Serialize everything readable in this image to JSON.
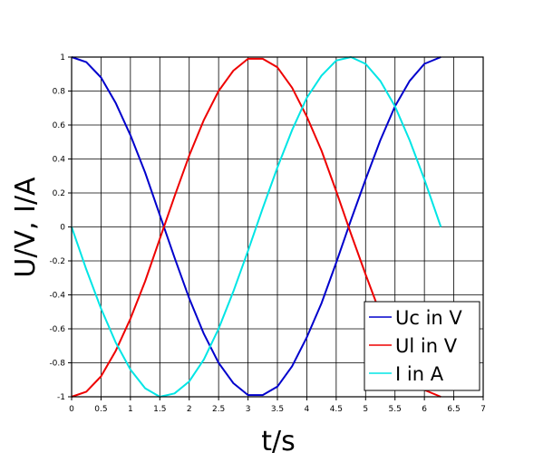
{
  "chart_data": {
    "type": "line",
    "title": "",
    "xlabel": "t/s",
    "ylabel": "U/V, I/A",
    "xlim": [
      0,
      7
    ],
    "ylim": [
      -1,
      1
    ],
    "x_ticks": [
      0,
      0.5,
      1,
      1.5,
      2,
      2.5,
      3,
      3.5,
      4,
      4.5,
      5,
      5.5,
      6,
      6.5,
      7
    ],
    "y_ticks": [
      -1,
      -0.8,
      -0.6,
      -0.4,
      -0.2,
      0,
      0.2,
      0.4,
      0.6,
      0.8,
      1
    ],
    "grid": true,
    "legend_position": "bottom-right",
    "series": [
      {
        "name": "Uc in V",
        "color": "#0000cc",
        "x": [
          0,
          0.25,
          0.5,
          0.75,
          1,
          1.25,
          1.5,
          1.75,
          2,
          2.25,
          2.5,
          2.75,
          3,
          3.25,
          3.5,
          3.75,
          4,
          4.25,
          4.5,
          4.75,
          5,
          5.25,
          5.5,
          5.75,
          6,
          6.28
        ],
        "y": [
          1,
          0.97,
          0.88,
          0.73,
          0.54,
          0.32,
          0.07,
          -0.18,
          -0.42,
          -0.63,
          -0.8,
          -0.92,
          -0.99,
          -0.99,
          -0.94,
          -0.82,
          -0.65,
          -0.45,
          -0.21,
          0.04,
          0.28,
          0.51,
          0.71,
          0.86,
          0.96,
          1
        ]
      },
      {
        "name": "Ul in V",
        "color": "#ee0000",
        "x": [
          0,
          0.25,
          0.5,
          0.75,
          1,
          1.25,
          1.5,
          1.75,
          2,
          2.25,
          2.5,
          2.75,
          3,
          3.25,
          3.5,
          3.75,
          4,
          4.25,
          4.5,
          4.75,
          5,
          5.25,
          5.5,
          5.75,
          6,
          6.28
        ],
        "y": [
          -1,
          -0.97,
          -0.88,
          -0.73,
          -0.54,
          -0.32,
          -0.07,
          0.18,
          0.42,
          0.63,
          0.8,
          0.92,
          0.99,
          0.99,
          0.94,
          0.82,
          0.65,
          0.45,
          0.21,
          -0.04,
          -0.28,
          -0.51,
          -0.71,
          -0.86,
          -0.96,
          -1
        ]
      },
      {
        "name": "I in A",
        "color": "#00e5e5",
        "x": [
          0,
          0.25,
          0.5,
          0.75,
          1,
          1.25,
          1.5,
          1.75,
          2,
          2.25,
          2.5,
          2.75,
          3,
          3.25,
          3.5,
          3.75,
          4,
          4.25,
          4.5,
          4.75,
          5,
          5.25,
          5.5,
          5.75,
          6,
          6.28
        ],
        "y": [
          0,
          -0.25,
          -0.48,
          -0.68,
          -0.84,
          -0.95,
          -1,
          -0.98,
          -0.91,
          -0.78,
          -0.6,
          -0.38,
          -0.14,
          0.11,
          0.35,
          0.57,
          0.76,
          0.89,
          0.98,
          1,
          0.96,
          0.86,
          0.71,
          0.51,
          0.28,
          0
        ]
      }
    ]
  }
}
